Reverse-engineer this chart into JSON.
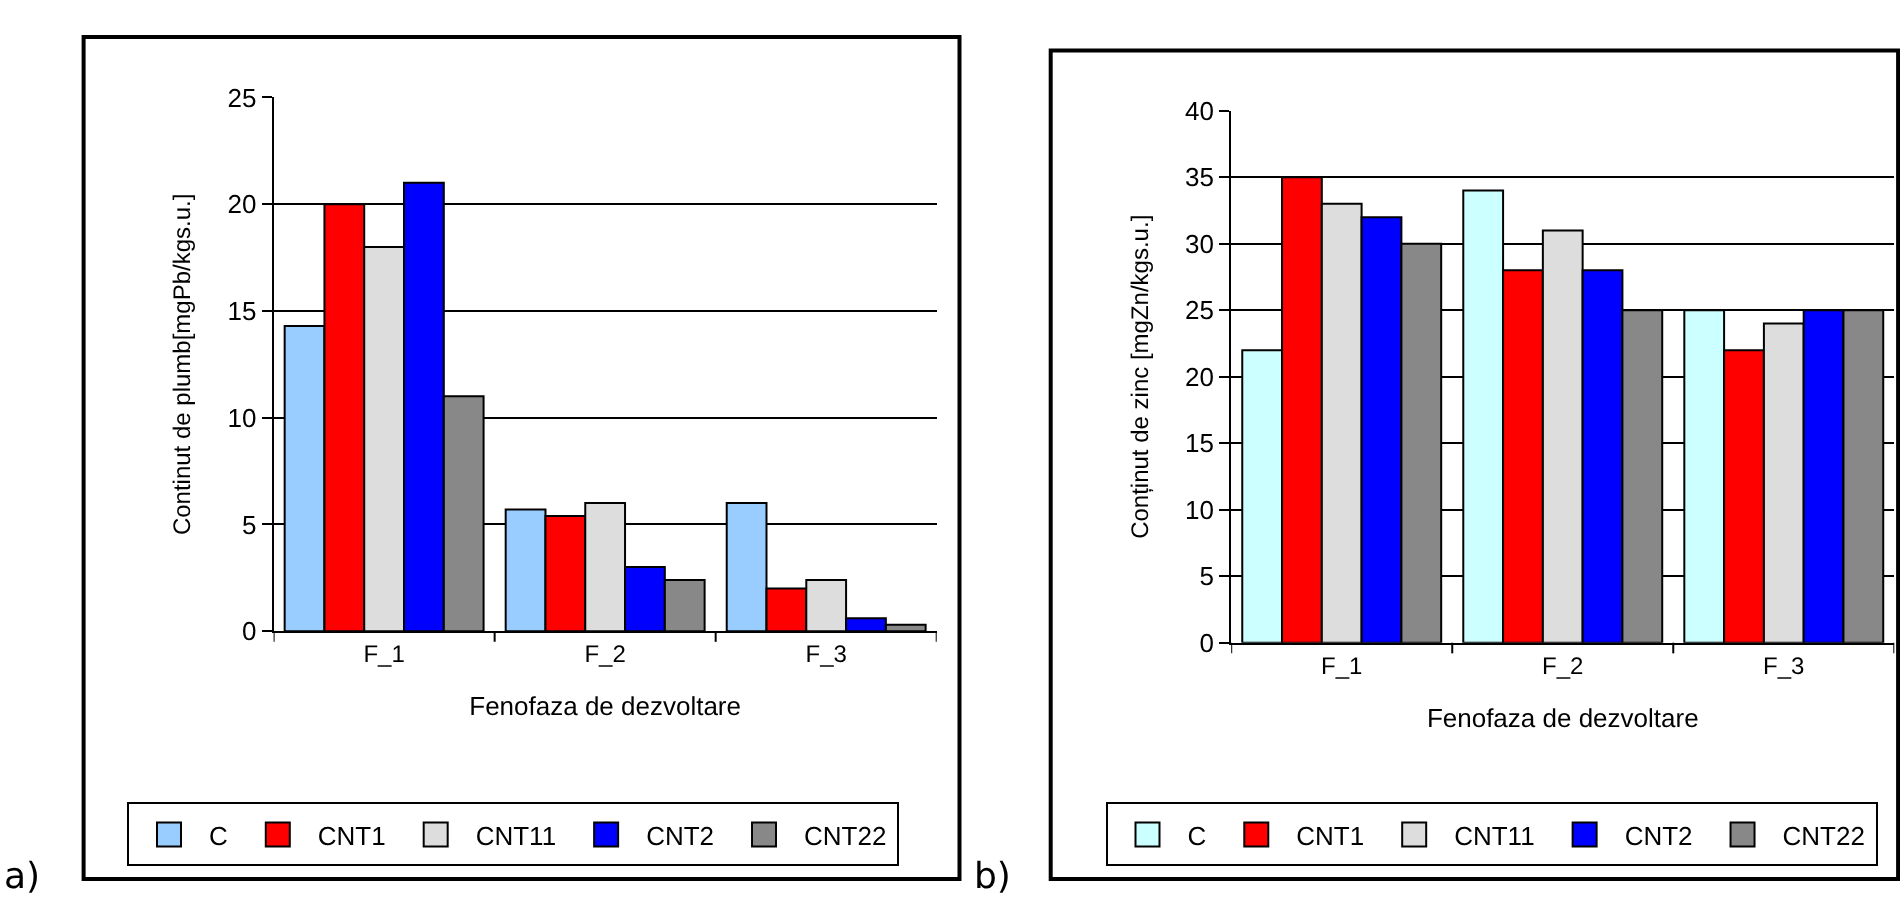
{
  "chart_data": [
    {
      "type": "bar",
      "xlabel": "Fenofaza de dezvoltare",
      "ylabel": "Continut de plumb[mgPb/kgs.u.]",
      "categories": [
        "F_1",
        "F_2",
        "F_3"
      ],
      "ylim": [
        0,
        25
      ],
      "yticks": [
        0,
        5,
        10,
        15,
        20,
        25
      ],
      "grid": "y",
      "legend": "bottom",
      "annotations": [
        "a)"
      ],
      "series": [
        {
          "name": "C",
          "color": "#99ccff",
          "values": [
            14.3,
            5.7,
            6.0
          ]
        },
        {
          "name": "CNT1",
          "color": "#ff0000",
          "values": [
            20,
            5.4,
            2.0
          ]
        },
        {
          "name": "CNT11",
          "color": "#dddddd",
          "values": [
            18,
            6.0,
            2.4
          ]
        },
        {
          "name": "CNT2",
          "color": "#0000ff",
          "values": [
            21,
            3.0,
            0.6
          ]
        },
        {
          "name": "CNT22",
          "color": "#888888",
          "values": [
            11,
            2.4,
            0.3
          ]
        }
      ]
    },
    {
      "type": "bar",
      "xlabel": "Fenofaza de dezvoltare",
      "ylabel": "Conținut de zinc [mgZn/kgs.u.]",
      "categories": [
        "F_1",
        "F_2",
        "F_3"
      ],
      "ylim": [
        0,
        40
      ],
      "yticks": [
        0,
        5,
        10,
        15,
        20,
        25,
        30,
        35,
        40
      ],
      "grid": "y",
      "legend": "bottom",
      "annotations": [
        "b)"
      ],
      "series": [
        {
          "name": "C",
          "color": "#ccffff",
          "values": [
            22,
            34,
            25
          ]
        },
        {
          "name": "CNT1",
          "color": "#ff0000",
          "values": [
            35,
            28,
            22
          ]
        },
        {
          "name": "CNT11",
          "color": "#dddddd",
          "values": [
            33,
            31,
            24
          ]
        },
        {
          "name": "CNT2",
          "color": "#0000ff",
          "values": [
            32,
            28,
            25
          ]
        },
        {
          "name": "CNT22",
          "color": "#888888",
          "values": [
            30,
            25,
            25
          ]
        }
      ]
    }
  ]
}
